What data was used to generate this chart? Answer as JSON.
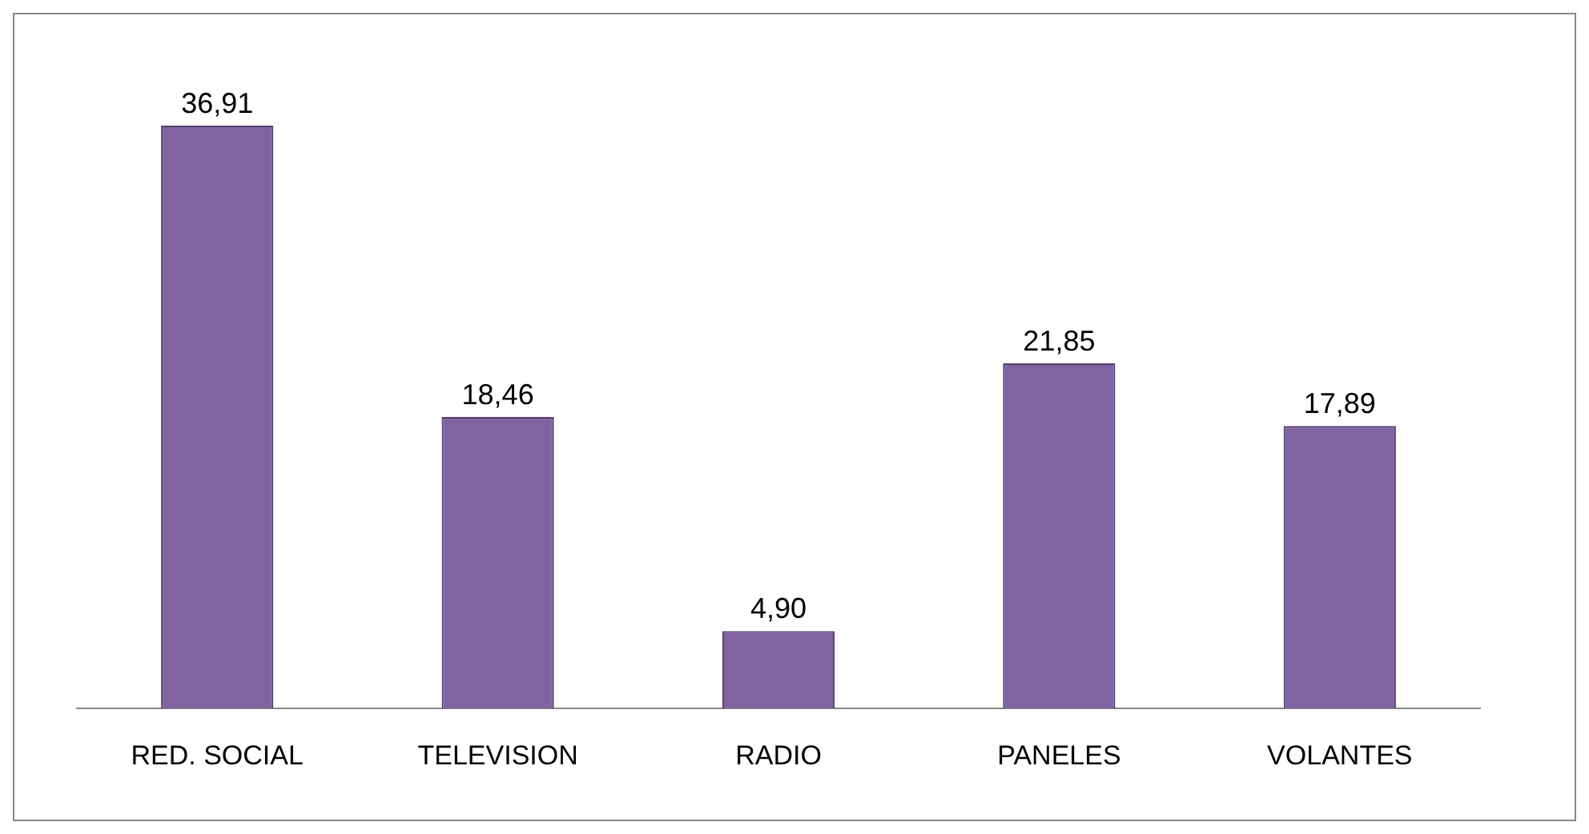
{
  "chart_data": {
    "type": "bar",
    "categories": [
      "RED. SOCIAL",
      "TELEVISION",
      "RADIO",
      "PANELES",
      "VOLANTES"
    ],
    "values": [
      36.91,
      18.46,
      4.9,
      21.85,
      17.89
    ],
    "value_labels": [
      "36,91",
      "18,46",
      "4,90",
      "21,85",
      "17,89"
    ],
    "color": "#8064a2",
    "grid": false,
    "legend": false
  }
}
